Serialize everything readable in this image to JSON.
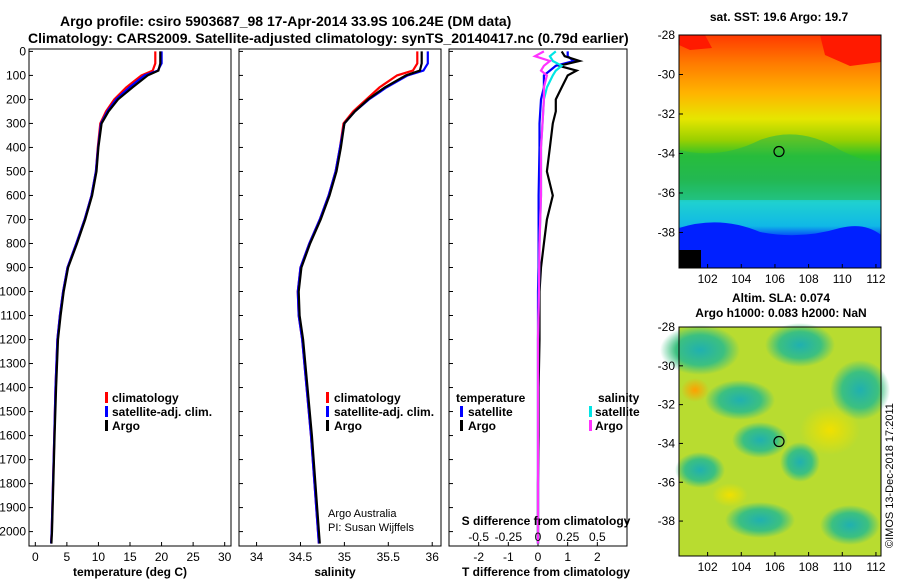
{
  "title_line1": "Argo profile: csiro 5903687_98 17-Apr-2014 33.9S 106.24E (DM data)",
  "title_line2": "Climatology: CARS2009. Satellite-adjusted climatology: synTS_20140417.nc (0.79d earlier)",
  "credit_line1": "Argo Australia",
  "credit_line2": "PI: Susan Wijffels",
  "imos_stamp": "©IMOS 13-Dec-2018 17:2011",
  "colors": {
    "climatology": "#ff0000",
    "satellite": "#0000ff",
    "argo": "#000000",
    "s_satellite": "#00e5e5",
    "s_argo": "#ff33ff"
  },
  "chart_data": [
    {
      "type": "line",
      "id": "temperature",
      "xlabel": "temperature (deg C)",
      "xlim": [
        -1,
        31
      ],
      "ylim": [
        2060,
        -10
      ],
      "xticks": [
        "0",
        "5",
        "10",
        "15",
        "20",
        "25",
        "30"
      ],
      "xtick_values": [
        0,
        5,
        10,
        15,
        20,
        25,
        30
      ],
      "yticks": [
        "0",
        "100",
        "200",
        "300",
        "400",
        "500",
        "600",
        "700",
        "800",
        "900",
        "1000",
        "1100",
        "1200",
        "1300",
        "1400",
        "1500",
        "1600",
        "1700",
        "1800",
        "1900",
        "2000"
      ],
      "ytick_values": [
        0,
        100,
        200,
        300,
        400,
        500,
        600,
        700,
        800,
        900,
        1000,
        1100,
        1200,
        1300,
        1400,
        1500,
        1600,
        1700,
        1800,
        1900,
        2000
      ],
      "legend": [
        "climatology",
        "satellite-adj. clim.",
        "Argo"
      ],
      "series": [
        {
          "name": "climatology",
          "color_key": "climatology",
          "x": [
            19.0,
            19.0,
            18.6,
            16.8,
            14.4,
            12.5,
            11.2,
            10.3,
            9.9,
            9.6,
            8.9,
            7.8,
            6.5,
            5.1,
            4.4,
            3.9,
            3.5,
            3.2,
            3.0,
            2.8,
            2.6,
            2.5
          ],
          "y": [
            0,
            50,
            80,
            100,
            150,
            200,
            250,
            300,
            400,
            500,
            600,
            700,
            800,
            900,
            1000,
            1100,
            1200,
            1400,
            1600,
            1800,
            2000,
            2050
          ]
        },
        {
          "name": "satellite-adj. clim.",
          "color_key": "satellite",
          "x": [
            20.0,
            20.0,
            19.4,
            17.3,
            14.9,
            12.8,
            11.4,
            10.4,
            9.95,
            9.6,
            8.9,
            7.8,
            6.5,
            5.1,
            4.4,
            3.9,
            3.5,
            3.2,
            3.0,
            2.8,
            2.6,
            2.5
          ],
          "y": [
            0,
            50,
            80,
            100,
            150,
            200,
            250,
            300,
            400,
            500,
            600,
            700,
            800,
            900,
            1000,
            1100,
            1200,
            1400,
            1600,
            1800,
            2000,
            2050
          ]
        },
        {
          "name": "Argo",
          "color_key": "argo",
          "x": [
            19.8,
            19.8,
            19.5,
            17.8,
            15.4,
            13.1,
            11.6,
            10.5,
            10.0,
            9.7,
            9.0,
            7.9,
            6.6,
            5.2,
            4.5,
            4.0,
            3.6,
            3.3,
            3.05,
            2.85,
            2.65,
            2.55
          ],
          "y": [
            0,
            50,
            80,
            100,
            150,
            200,
            250,
            300,
            400,
            500,
            600,
            700,
            800,
            900,
            1000,
            1100,
            1200,
            1400,
            1600,
            1800,
            2000,
            2050
          ]
        }
      ]
    },
    {
      "type": "line",
      "id": "salinity",
      "xlabel": "salinity",
      "xlim": [
        33.8,
        36.1
      ],
      "ylim": [
        2060,
        -10
      ],
      "xticks": [
        "34",
        "34.5",
        "35",
        "35.5",
        "36"
      ],
      "xtick_values": [
        34,
        34.5,
        35,
        35.5,
        36
      ],
      "legend": [
        "climatology",
        "satellite-adj. clim.",
        "Argo"
      ],
      "series": [
        {
          "name": "climatology",
          "color_key": "climatology",
          "x": [
            35.83,
            35.83,
            35.78,
            35.6,
            35.4,
            35.25,
            35.1,
            34.99,
            34.95,
            34.9,
            34.82,
            34.72,
            34.6,
            34.5,
            34.47,
            34.48,
            34.52,
            34.57,
            34.62,
            34.66,
            34.7,
            34.71
          ],
          "y": [
            0,
            50,
            80,
            100,
            150,
            200,
            250,
            300,
            400,
            500,
            600,
            700,
            800,
            900,
            1000,
            1100,
            1200,
            1400,
            1600,
            1800,
            2000,
            2050
          ]
        },
        {
          "name": "satellite-adj. clim.",
          "color_key": "satellite",
          "x": [
            35.95,
            35.95,
            35.9,
            35.72,
            35.48,
            35.28,
            35.12,
            35.0,
            34.95,
            34.9,
            34.82,
            34.72,
            34.6,
            34.5,
            34.47,
            34.48,
            34.52,
            34.57,
            34.62,
            34.66,
            34.7,
            34.71
          ],
          "y": [
            0,
            50,
            80,
            100,
            150,
            200,
            250,
            300,
            400,
            500,
            600,
            700,
            800,
            900,
            1000,
            1100,
            1200,
            1400,
            1600,
            1800,
            2000,
            2050
          ]
        },
        {
          "name": "Argo",
          "color_key": "argo",
          "x": [
            35.88,
            35.88,
            35.86,
            35.7,
            35.46,
            35.27,
            35.12,
            35.0,
            34.96,
            34.91,
            34.83,
            34.73,
            34.61,
            34.51,
            34.48,
            34.49,
            34.53,
            34.58,
            34.63,
            34.67,
            34.71,
            34.72
          ],
          "y": [
            0,
            50,
            80,
            100,
            150,
            200,
            250,
            300,
            400,
            500,
            600,
            700,
            800,
            900,
            1000,
            1100,
            1200,
            1400,
            1600,
            1800,
            2000,
            2050
          ]
        }
      ]
    },
    {
      "type": "line",
      "id": "difference",
      "xlabel": "T difference from climatology",
      "xlabel_top": "S difference from climatology",
      "xlim": [
        -3,
        3
      ],
      "ylim": [
        2060,
        -10
      ],
      "xticks": [
        "-2",
        "-1",
        "0",
        "1",
        "2"
      ],
      "xtick_values": [
        -2,
        -1,
        0,
        1,
        2
      ],
      "xticks_top": [
        "-0.5",
        "-0.25",
        "0",
        "0.25",
        "0.5"
      ],
      "xtick_top_positions": [
        -2,
        -1,
        0,
        1,
        2
      ],
      "legend_left_title": "temperature",
      "legend_right_title": "salinity",
      "legend_left": [
        "satellite",
        "Argo"
      ],
      "legend_right": [
        "satellite",
        "Argo"
      ],
      "series": [
        {
          "name": "T satellite",
          "color_key": "satellite",
          "x": [
            1.0,
            1.0,
            1.2,
            0.6,
            0.4,
            0.2,
            0.2,
            0.1,
            0.05,
            0.05,
            0.02,
            0.02,
            0.02,
            0.0,
            0.0,
            0.0,
            0.0,
            0.0,
            0.0
          ],
          "y": [
            0,
            20,
            40,
            60,
            80,
            100,
            150,
            200,
            300,
            400,
            600,
            800,
            900,
            1000,
            1200,
            1400,
            1600,
            1800,
            2050
          ]
        },
        {
          "name": "T Argo",
          "color_key": "argo",
          "x": [
            0.8,
            0.9,
            1.4,
            0.7,
            1.3,
            1.0,
            0.8,
            0.6,
            0.6,
            0.5,
            0.4,
            0.3,
            0.5,
            0.3,
            0.2,
            0.1,
            0.05,
            0.05,
            0.02,
            0.02,
            0.0,
            0.0
          ],
          "y": [
            0,
            20,
            40,
            60,
            80,
            100,
            150,
            200,
            250,
            300,
            400,
            500,
            600,
            700,
            800,
            900,
            1000,
            1200,
            1400,
            1600,
            1800,
            2050
          ]
        },
        {
          "name": "S satellite",
          "color_key": "s_satellite",
          "x": [
            0.6,
            0.4,
            0.5,
            0.8,
            0.6,
            0.5,
            0.3,
            0.2,
            0.15,
            0.1,
            0.1,
            0.05,
            0.03,
            0.0,
            0.0,
            0.0,
            0.0
          ],
          "y": [
            0,
            20,
            40,
            60,
            80,
            100,
            150,
            200,
            300,
            400,
            600,
            800,
            1000,
            1200,
            1400,
            1600,
            2050
          ]
        },
        {
          "name": "S Argo",
          "color_key": "s_argo",
          "x": [
            0.2,
            -0.1,
            0.4,
            0.2,
            0.1,
            0.3,
            0.2,
            0.2,
            0.15,
            0.1,
            0.1,
            0.05,
            0.03,
            0.0,
            0.0,
            0.0
          ],
          "y": [
            0,
            20,
            40,
            60,
            80,
            100,
            150,
            200,
            300,
            400,
            600,
            800,
            1000,
            1200,
            1400,
            2050
          ]
        }
      ]
    },
    {
      "type": "heatmap",
      "id": "sst-map",
      "title": "sat. SST: 19.6 Argo: 19.7",
      "xticks": [
        "102",
        "104",
        "106",
        "108",
        "110",
        "112"
      ],
      "xtick_values": [
        102,
        104,
        106,
        108,
        110,
        112
      ],
      "yticks": [
        "-28",
        "-30",
        "-32",
        "-34",
        "-36",
        "-38"
      ],
      "ytick_values": [
        -28,
        -30,
        -32,
        -34,
        -36,
        -38
      ],
      "xlim": [
        100.3,
        112.3
      ],
      "ylim": [
        -28,
        -39.8
      ],
      "marker": {
        "lon": 106.24,
        "lat": -33.9
      }
    },
    {
      "type": "heatmap",
      "id": "sla-map",
      "title": "Altim. SLA: 0.074",
      "subtitle": "Argo h1000: 0.083 h2000: NaN",
      "xticks": [
        "102",
        "104",
        "106",
        "108",
        "110",
        "112"
      ],
      "xtick_values": [
        102,
        104,
        106,
        108,
        110,
        112
      ],
      "yticks": [
        "-28",
        "-30",
        "-32",
        "-34",
        "-36",
        "-38"
      ],
      "ytick_values": [
        -28,
        -30,
        -32,
        -34,
        -36,
        -38
      ],
      "xlim": [
        100.3,
        112.3
      ],
      "ylim": [
        -28,
        -39.8
      ],
      "marker": {
        "lon": 106.24,
        "lat": -33.9
      }
    }
  ]
}
